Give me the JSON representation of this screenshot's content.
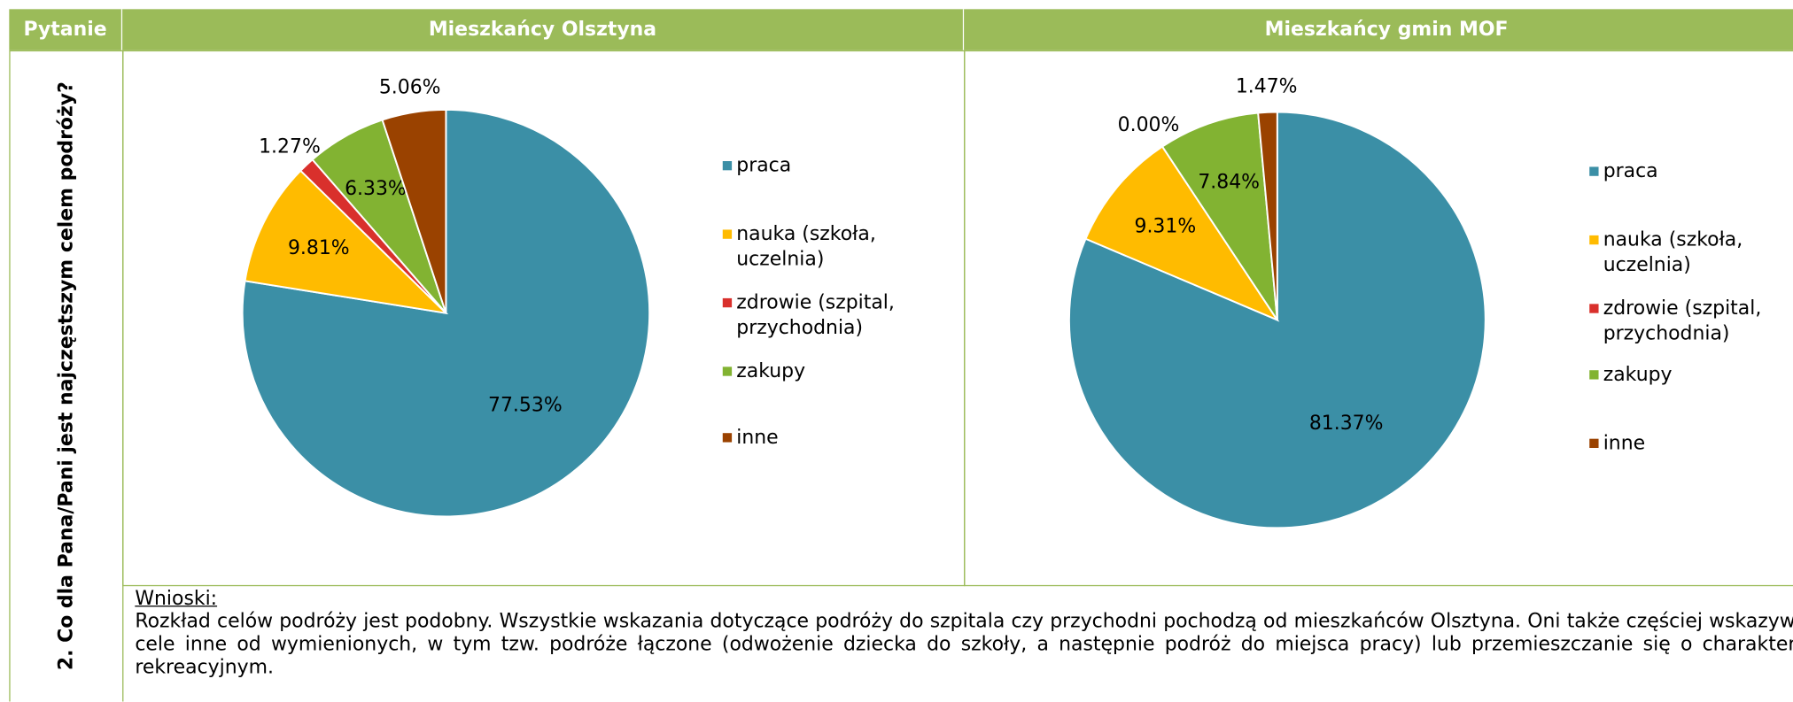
{
  "header": {
    "col1": "Pytanie",
    "col2": "Mieszkańcy Olsztyna",
    "col3": "Mieszkańcy gmin MOF"
  },
  "question": "2. Co dla Pana/Pani jest najczęstszym celem podróży?",
  "chart_data": [
    {
      "type": "pie",
      "categories": [
        "praca",
        "nauka (szkoła, uczelnia)",
        "zdrowie (szpital, przychodnia)",
        "zakupy",
        "inne"
      ],
      "values": [
        77.53,
        9.81,
        1.27,
        6.33,
        5.06
      ],
      "value_labels": [
        "77.53%",
        "9.81%",
        "1.27%",
        "6.33%",
        "5.06%"
      ],
      "colors": [
        "#3b8fa6",
        "#ffbb00",
        "#d9302c",
        "#82b332",
        "#9a4200"
      ]
    },
    {
      "type": "pie",
      "categories": [
        "praca",
        "nauka (szkoła, uczelnia)",
        "zdrowie (szpital, przychodnia)",
        "zakupy",
        "inne"
      ],
      "values": [
        81.37,
        9.31,
        0.0,
        7.84,
        1.47
      ],
      "value_labels": [
        "81.37%",
        "9.31%",
        "0.00%",
        "7.84%",
        "1.47%"
      ],
      "colors": [
        "#3b8fa6",
        "#ffbb00",
        "#d9302c",
        "#82b332",
        "#9a4200"
      ]
    }
  ],
  "conclusions": {
    "heading": "Wnioski:",
    "text": "Rozkład celów podróży jest podobny. Wszystkie wskazania dotyczące podróży do szpitala czy przychodni pochodzą od mieszkańców Olsztyna. Oni także częściej wskazywali cele inne od wymienionych, w tym tzw. podróże łączone (odwożenie dziecka do szkoły, a następnie podróż do miejsca pracy) lub przemieszczanie się o charakterze rekreacyjnym."
  }
}
